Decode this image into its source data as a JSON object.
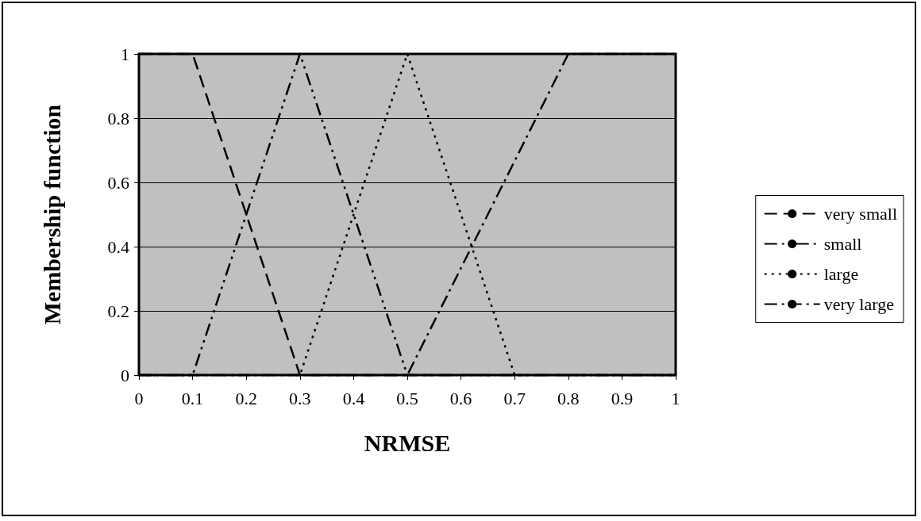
{
  "chart_data": {
    "type": "line",
    "xlabel": "NRMSE",
    "ylabel": "Membership function",
    "series": [
      {
        "name": "very small",
        "color": "#000000",
        "line_style": "dashed",
        "x": [
          0,
          0.1,
          0.3,
          1
        ],
        "values": [
          1,
          1,
          0,
          0
        ]
      },
      {
        "name": "small",
        "color": "#000000",
        "line_style": "dashdotdot",
        "x": [
          0,
          0.1,
          0.3,
          0.5,
          1
        ],
        "values": [
          0,
          0,
          1,
          0,
          0
        ]
      },
      {
        "name": "large",
        "color": "#000000",
        "line_style": "dotted",
        "x": [
          0,
          0.3,
          0.5,
          0.7,
          1
        ],
        "values": [
          0,
          0,
          1,
          0,
          0
        ]
      },
      {
        "name": "very large",
        "color": "#000000",
        "line_style": "dashdot",
        "x": [
          0,
          0.5,
          0.8,
          1
        ],
        "values": [
          0,
          0,
          1,
          1
        ]
      }
    ],
    "xlim": [
      0,
      1
    ],
    "xticks": [
      0,
      0.1,
      0.2,
      0.3,
      0.4,
      0.5,
      0.6,
      0.7,
      0.8,
      0.9,
      1
    ],
    "ylim": [
      0,
      1
    ],
    "yticks": [
      0,
      0.2,
      0.4,
      0.6,
      0.8,
      1
    ],
    "grid": "y",
    "legend": "right",
    "marker": "none"
  }
}
